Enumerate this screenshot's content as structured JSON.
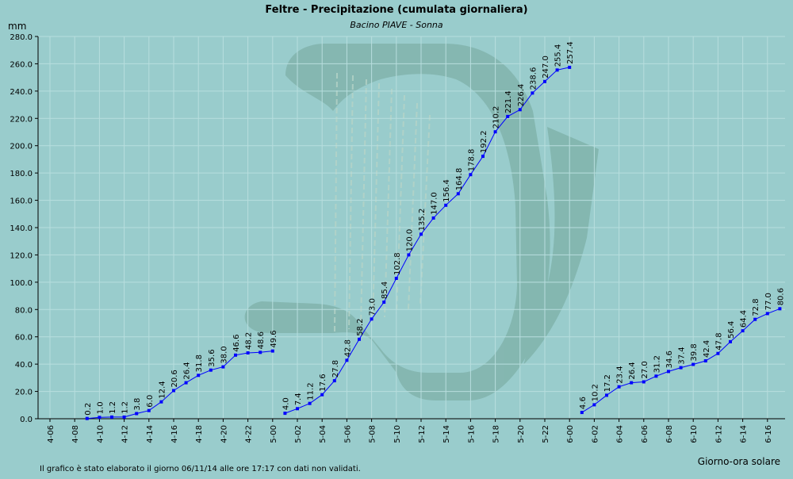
{
  "chart_data": {
    "type": "line",
    "title": "Feltre - Precipitazione (cumulata giornaliera)",
    "subtitle": "Bacino PIAVE - Sonna",
    "ylabel": "mm",
    "xlabel": "Giorno-ora solare",
    "footnote": "Il grafico è stato elaborato il giorno 06/11/14 alle ore 17:17 con dati non validati.",
    "ylim": [
      0,
      280
    ],
    "y_ticks": [
      "0.0",
      "20.0",
      "40.0",
      "60.0",
      "80.0",
      "100.0",
      "120.0",
      "140.0",
      "160.0",
      "180.0",
      "200.0",
      "220.0",
      "240.0",
      "260.0",
      "280.0"
    ],
    "x_tick_labels": [
      "4-06",
      "4-08",
      "4-10",
      "4-12",
      "4-14",
      "4-16",
      "4-18",
      "4-20",
      "4-22",
      "5-00",
      "5-02",
      "5-04",
      "5-06",
      "5-08",
      "5-10",
      "5-12",
      "5-14",
      "5-16",
      "5-18",
      "5-20",
      "5-22",
      "6-00",
      "6-02",
      "6-04",
      "6-06",
      "6-08",
      "6-10",
      "6-12",
      "6-14",
      "6-16"
    ],
    "grid": true,
    "series_color": "#0000ff",
    "background_color": "#99cccc",
    "grid_color": "#b8dede",
    "segments": [
      {
        "x": [
          "4-09",
          "4-10",
          "4-11",
          "4-12",
          "4-13",
          "4-14",
          "4-15",
          "4-16",
          "4-17",
          "4-18",
          "4-19",
          "4-20",
          "4-21",
          "4-22",
          "4-23",
          "5-00"
        ],
        "values": [
          0.2,
          1.0,
          1.2,
          1.2,
          3.8,
          6.0,
          12.4,
          20.6,
          26.4,
          31.8,
          35.6,
          38.0,
          46.6,
          48.2,
          48.6,
          49.6
        ],
        "labels": [
          "0.2",
          "1.0",
          "1.2",
          "1.2",
          "3.8",
          "6.0",
          "12.4",
          "20.6",
          "26.4",
          "31.8",
          "35.6",
          "38.0",
          "46.6",
          "48.2",
          "48.6",
          "49.6"
        ]
      },
      {
        "x": [
          "5-01",
          "5-02",
          "5-03",
          "5-04",
          "5-05",
          "5-06",
          "5-07",
          "5-08",
          "5-09",
          "5-10",
          "5-11",
          "5-12",
          "5-13",
          "5-14",
          "5-15",
          "5-16",
          "5-17",
          "5-18",
          "5-19",
          "5-20",
          "5-21",
          "5-22",
          "5-23",
          "6-00"
        ],
        "values": [
          4.0,
          7.4,
          11.2,
          17.6,
          27.8,
          42.8,
          58.2,
          73.0,
          85.4,
          102.8,
          120.0,
          135.2,
          147.0,
          156.4,
          164.8,
          178.8,
          192.2,
          210.2,
          221.4,
          226.4,
          238.6,
          247.0,
          255.4,
          257.4
        ],
        "labels": [
          "4.0",
          "7.4",
          "11.2",
          "17.6",
          "27.8",
          "42.8",
          "58.2",
          "73.0",
          "85.4",
          "102.8",
          "120.0",
          "135.2",
          "147.0",
          "156.4",
          "164.8",
          "178.8",
          "192.2",
          "210.2",
          "221.4",
          "226.4",
          "238.6",
          "247.0",
          "255.4",
          "257.4"
        ]
      },
      {
        "x": [
          "6-01",
          "6-02",
          "6-03",
          "6-04",
          "6-05",
          "6-06",
          "6-07",
          "6-08",
          "6-09",
          "6-10",
          "6-11",
          "6-12",
          "6-13",
          "6-14",
          "6-15",
          "6-16",
          "6-17"
        ],
        "values": [
          4.6,
          10.2,
          17.2,
          23.4,
          26.4,
          27.0,
          31.2,
          34.6,
          37.4,
          39.8,
          42.4,
          47.8,
          56.4,
          64.4,
          72.8,
          77.0,
          80.6
        ],
        "labels": [
          "4.6",
          "10.2",
          "17.2",
          "23.4",
          "26.4",
          "27.0",
          "31.2",
          "34.6",
          "37.4",
          "39.8",
          "42.4",
          "47.8",
          "56.4",
          "64.4",
          "72.8",
          "77.0",
          "80.6"
        ]
      }
    ]
  }
}
